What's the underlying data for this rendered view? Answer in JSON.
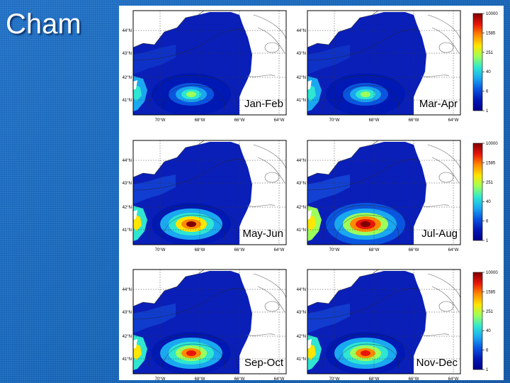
{
  "slide": {
    "title": "Cham"
  },
  "map": {
    "lat_labels": [
      "44°N",
      "43°N",
      "42°N",
      "41°N"
    ],
    "lon_labels": [
      "70°W",
      "68°W",
      "66°W",
      "64°W"
    ],
    "colorbar_labels": [
      "10000",
      "1585",
      "251",
      "40",
      "6",
      "1"
    ],
    "colorscale": [
      "#7f0000",
      "#e8140a",
      "#ff8a00",
      "#ffe600",
      "#9cff5a",
      "#2ee6d2",
      "#1aa8f0",
      "#0a55e0",
      "#0018b4",
      "#00008c"
    ]
  },
  "panels": [
    {
      "label": "Jan-Feb",
      "intensity": 0.12
    },
    {
      "label": "Mar-Apr",
      "intensity": 0.1
    },
    {
      "label": "May-Jun",
      "intensity": 0.55
    },
    {
      "label": "Jul-Aug",
      "intensity": 0.75
    },
    {
      "label": "Sep-Oct",
      "intensity": 0.52
    },
    {
      "label": "Nov-Dec",
      "intensity": 0.5
    }
  ]
}
